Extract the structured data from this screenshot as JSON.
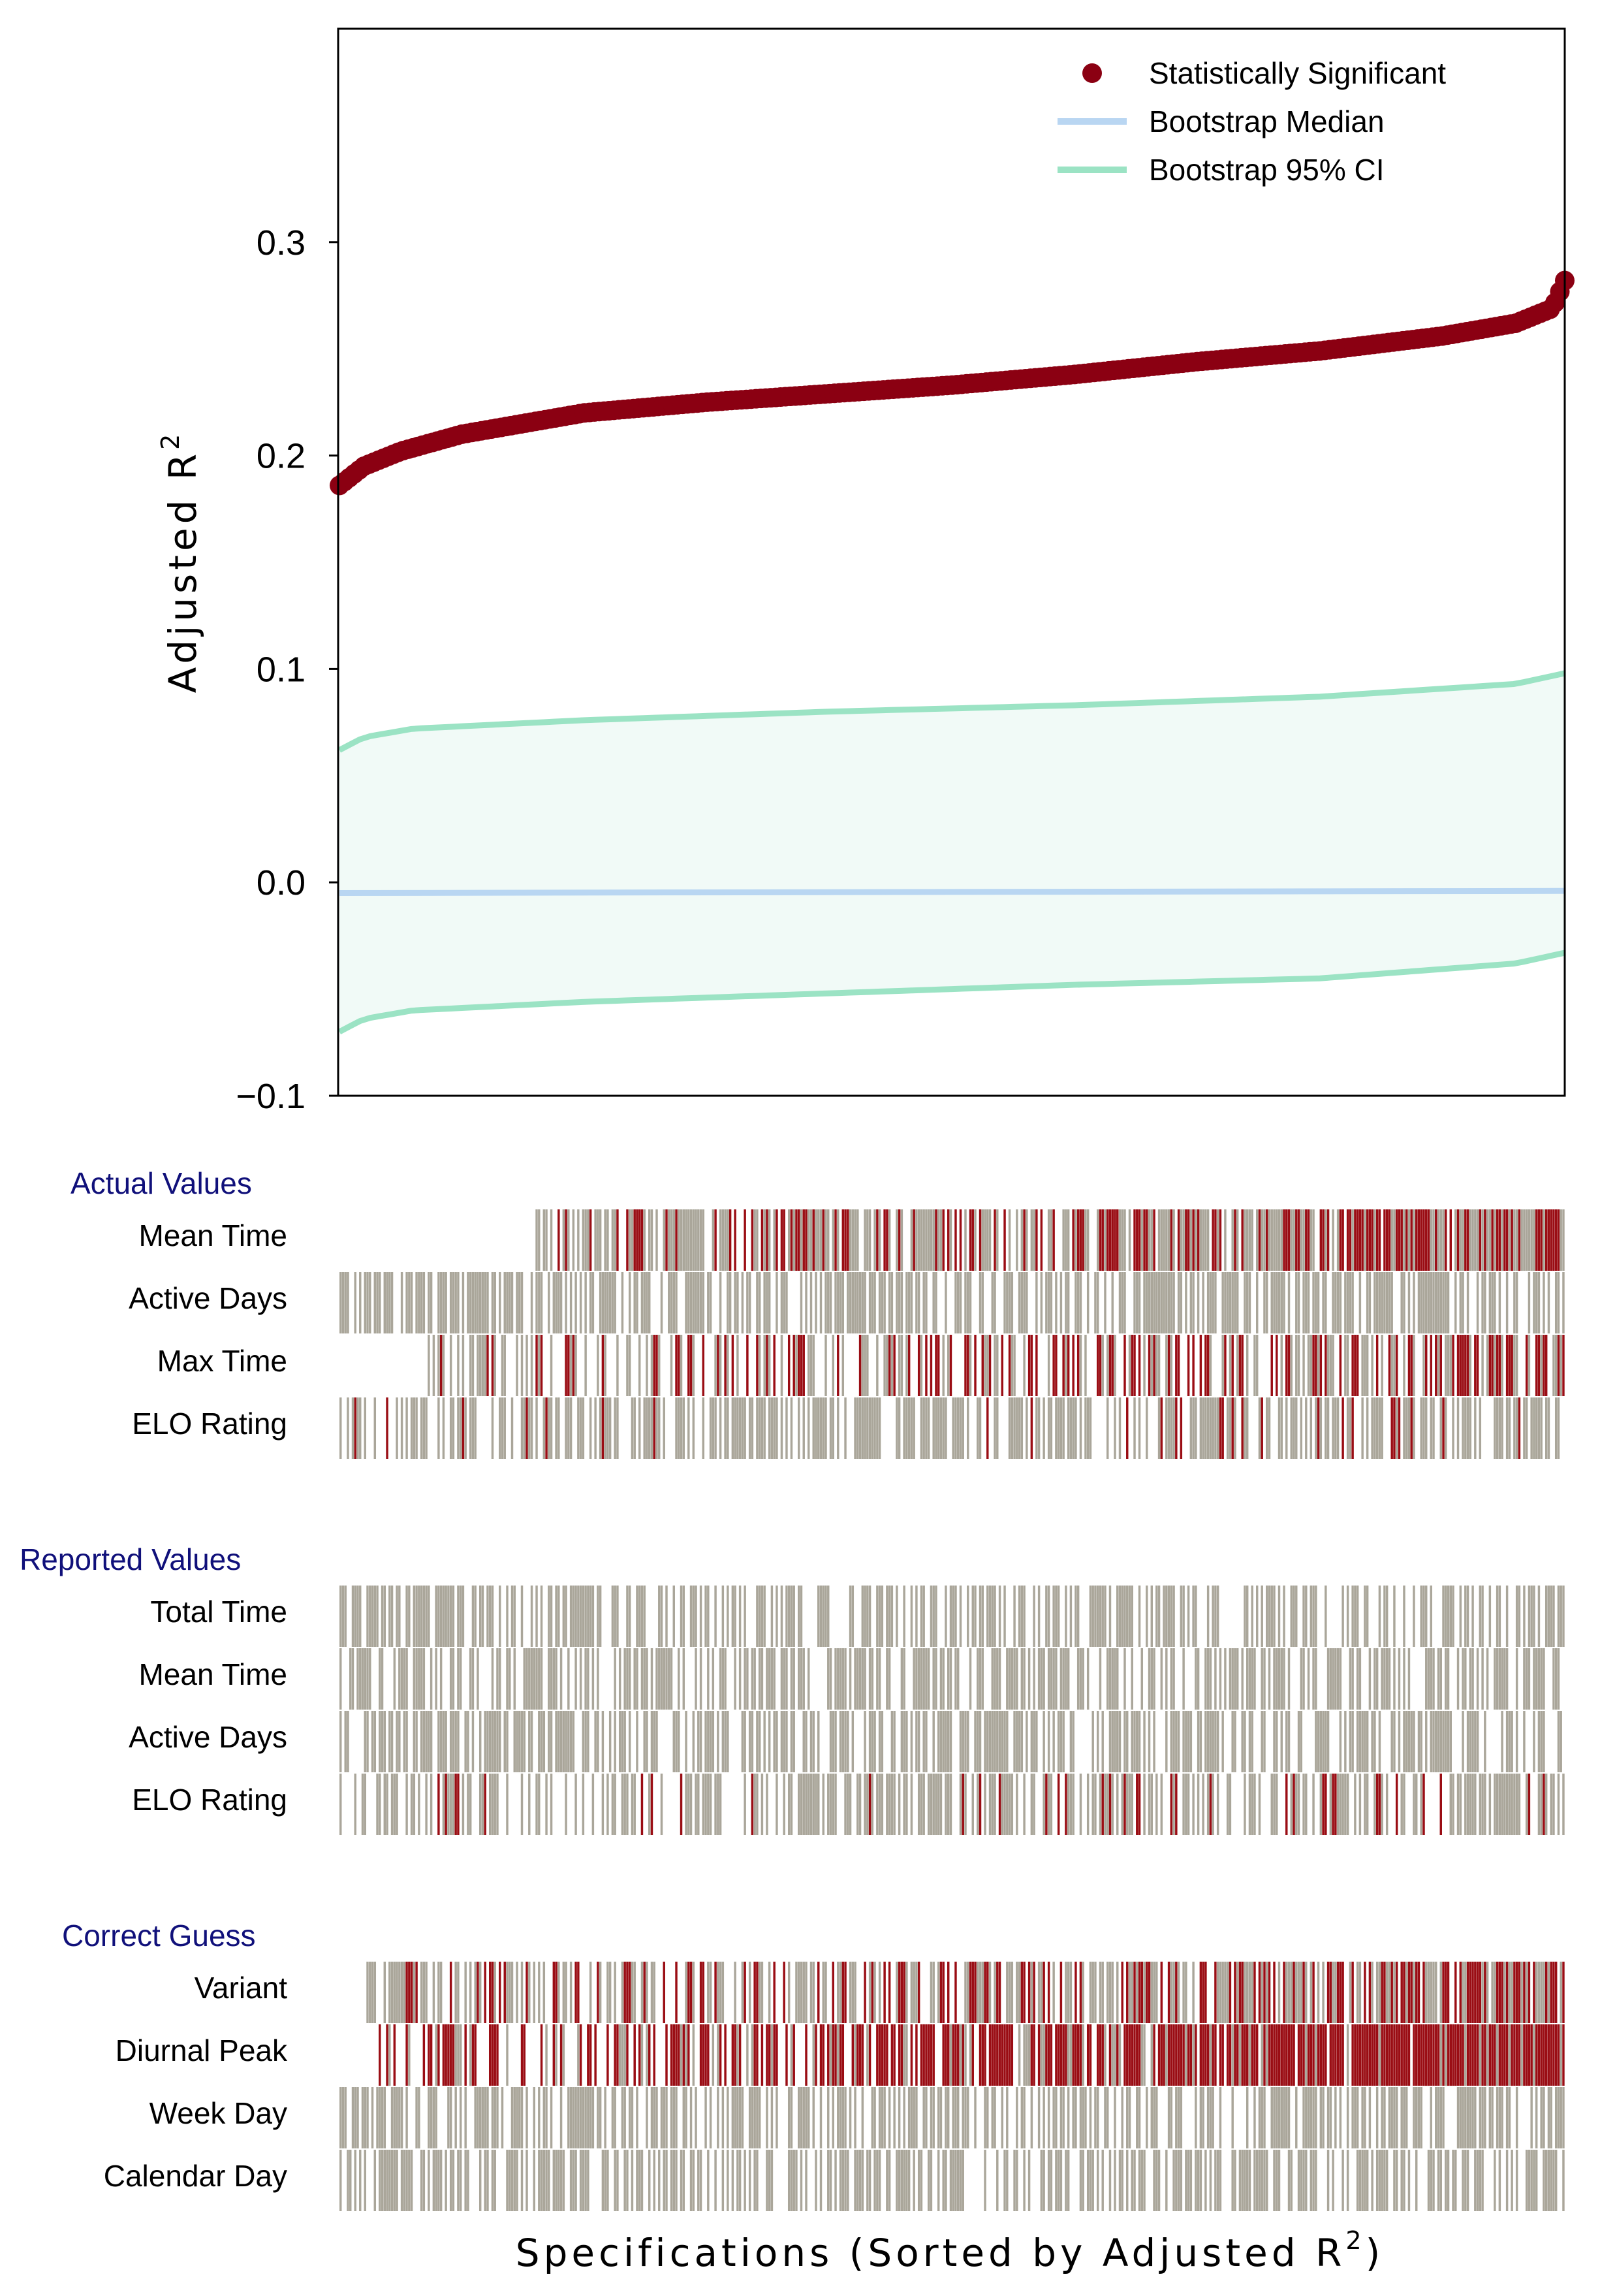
{
  "chart_data": {
    "type": "scatter",
    "ylabel": "Adjusted R",
    "ylabel_sup": "2",
    "xlabel": "Specifications (Sorted by Adjusted R",
    "xlabel_sup": "2",
    "xlabel_close": ")",
    "ylim": [
      -0.1,
      0.4
    ],
    "yticks": [
      -0.1,
      0.0,
      0.1,
      0.2,
      0.3
    ],
    "ytick_labels": [
      "−0.1",
      "0.0",
      "0.1",
      "0.2",
      "0.3"
    ],
    "n_specs": 500,
    "legend_position": "top-right",
    "legend": [
      {
        "label": "Statistically Significant",
        "kind": "dot",
        "color": "#8b0012"
      },
      {
        "label": "Bootstrap Median",
        "kind": "line",
        "color": "#b9d6f2"
      },
      {
        "label": "Bootstrap 95% CI",
        "kind": "line",
        "color": "#9be3c4"
      }
    ],
    "colors": {
      "significant": "#8b0012",
      "median": "#b9d6f2",
      "ci": "#9be3c4",
      "ci_fill": "#f1faf7",
      "indicator_red": "#9a0d14",
      "indicator_gray": "#aaa69a"
    },
    "series": [
      {
        "name": "Statistically Significant",
        "x": [
          0,
          10,
          25,
          50,
          100,
          150,
          200,
          250,
          300,
          350,
          400,
          450,
          480,
          495,
          500
        ],
        "y": [
          0.186,
          0.195,
          0.202,
          0.21,
          0.22,
          0.225,
          0.229,
          0.233,
          0.238,
          0.244,
          0.249,
          0.256,
          0.262,
          0.269,
          0.282
        ]
      },
      {
        "name": "Bootstrap Median",
        "x": [
          0,
          500
        ],
        "y": [
          -0.005,
          -0.004
        ]
      },
      {
        "name": "Bootstrap 95% CI upper",
        "x": [
          0,
          10,
          30,
          100,
          200,
          300,
          400,
          480,
          500
        ],
        "y": [
          0.062,
          0.068,
          0.072,
          0.076,
          0.08,
          0.083,
          0.087,
          0.093,
          0.098
        ]
      },
      {
        "name": "Bootstrap 95% CI lower",
        "x": [
          0,
          10,
          30,
          100,
          200,
          300,
          400,
          480,
          500
        ],
        "y": [
          -0.07,
          -0.064,
          -0.06,
          -0.056,
          -0.052,
          -0.048,
          -0.045,
          -0.038,
          -0.033
        ]
      }
    ],
    "indicator_groups": [
      {
        "title": "Actual Values",
        "rows": [
          {
            "label": "Mean Time",
            "start": 0.16,
            "gray_density": 0.45,
            "red_density": 0.32,
            "seed": 11
          },
          {
            "label": "Active Days",
            "start": 0.0,
            "gray_density": 0.62,
            "red_density": 0.0,
            "seed": 23
          },
          {
            "label": "Max Time",
            "start": 0.07,
            "gray_density": 0.28,
            "red_density": 0.26,
            "seed": 37
          },
          {
            "label": "ELO Rating",
            "start": 0.0,
            "gray_density": 0.52,
            "red_density": 0.05,
            "seed": 41
          }
        ]
      },
      {
        "title": "Reported Values",
        "rows": [
          {
            "label": "Total Time",
            "start": 0.0,
            "gray_density": 0.55,
            "red_density": 0.0,
            "seed": 53
          },
          {
            "label": "Mean Time",
            "start": 0.0,
            "gray_density": 0.58,
            "red_density": 0.0,
            "seed": 61
          },
          {
            "label": "Active Days",
            "start": 0.0,
            "gray_density": 0.6,
            "red_density": 0.0,
            "seed": 71
          },
          {
            "label": "ELO Rating",
            "start": 0.0,
            "gray_density": 0.48,
            "red_density": 0.07,
            "seed": 83
          }
        ]
      },
      {
        "title": "Correct Guess",
        "rows": [
          {
            "label": "Variant",
            "start": 0.02,
            "gray_density": 0.45,
            "red_density": 0.28,
            "seed": 97
          },
          {
            "label": "Diurnal Peak",
            "start": 0.03,
            "gray_density": 0.15,
            "red_density": 0.55,
            "seed": 101
          },
          {
            "label": "Week Day",
            "start": 0.0,
            "gray_density": 0.58,
            "red_density": 0.0,
            "seed": 113
          },
          {
            "label": "Calendar Day",
            "start": 0.0,
            "gray_density": 0.55,
            "red_density": 0.0,
            "seed": 127
          }
        ]
      }
    ]
  }
}
